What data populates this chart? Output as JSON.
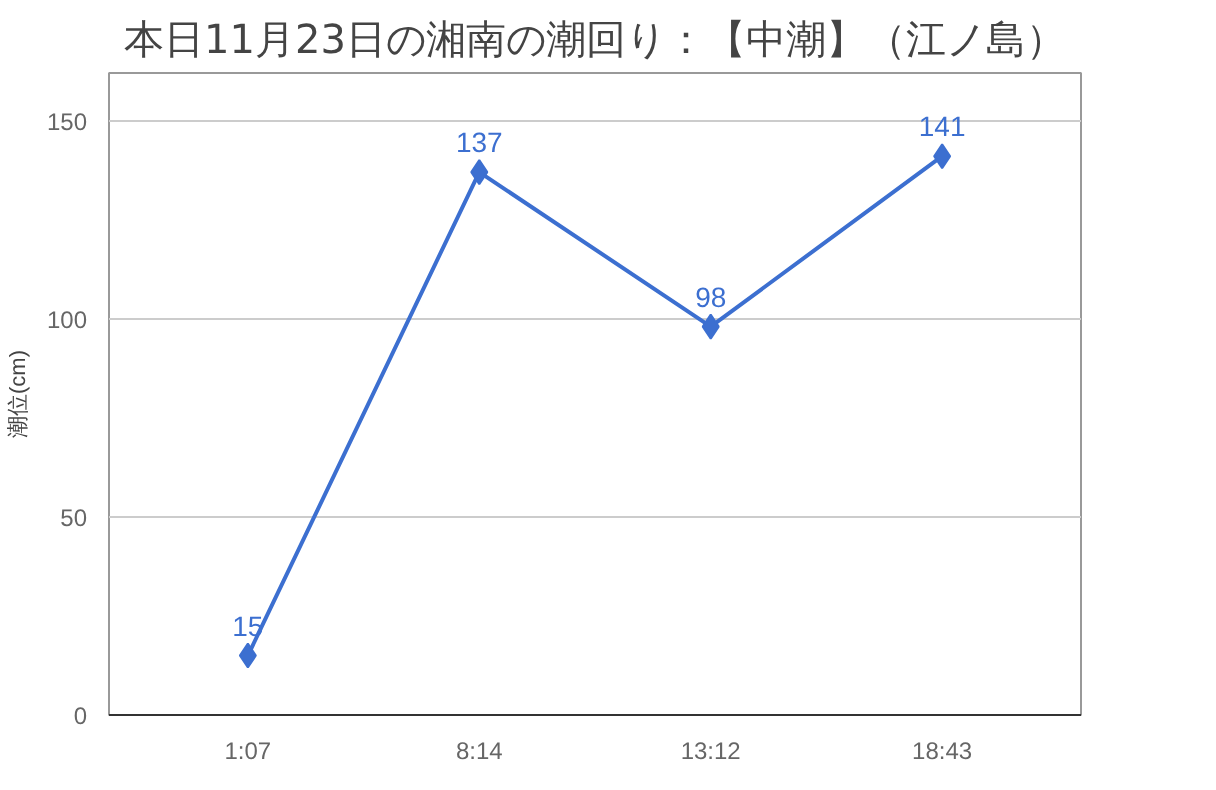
{
  "chart_data": {
    "type": "line",
    "title": "本日11月23日の湘南の潮回り：【中潮】（江ノ島）",
    "ylabel": "潮位(cm)",
    "categories": [
      "1:07",
      "8:14",
      "13:12",
      "18:43"
    ],
    "series": [
      {
        "color": "#3c6fd0",
        "values": [
          15,
          137,
          98,
          141
        ]
      }
    ],
    "ylim": [
      0,
      162
    ],
    "yticks": [
      0,
      50,
      100,
      150
    ],
    "grid": "y",
    "marker": "diamond",
    "line_style": "solid",
    "data_labels": true
  }
}
